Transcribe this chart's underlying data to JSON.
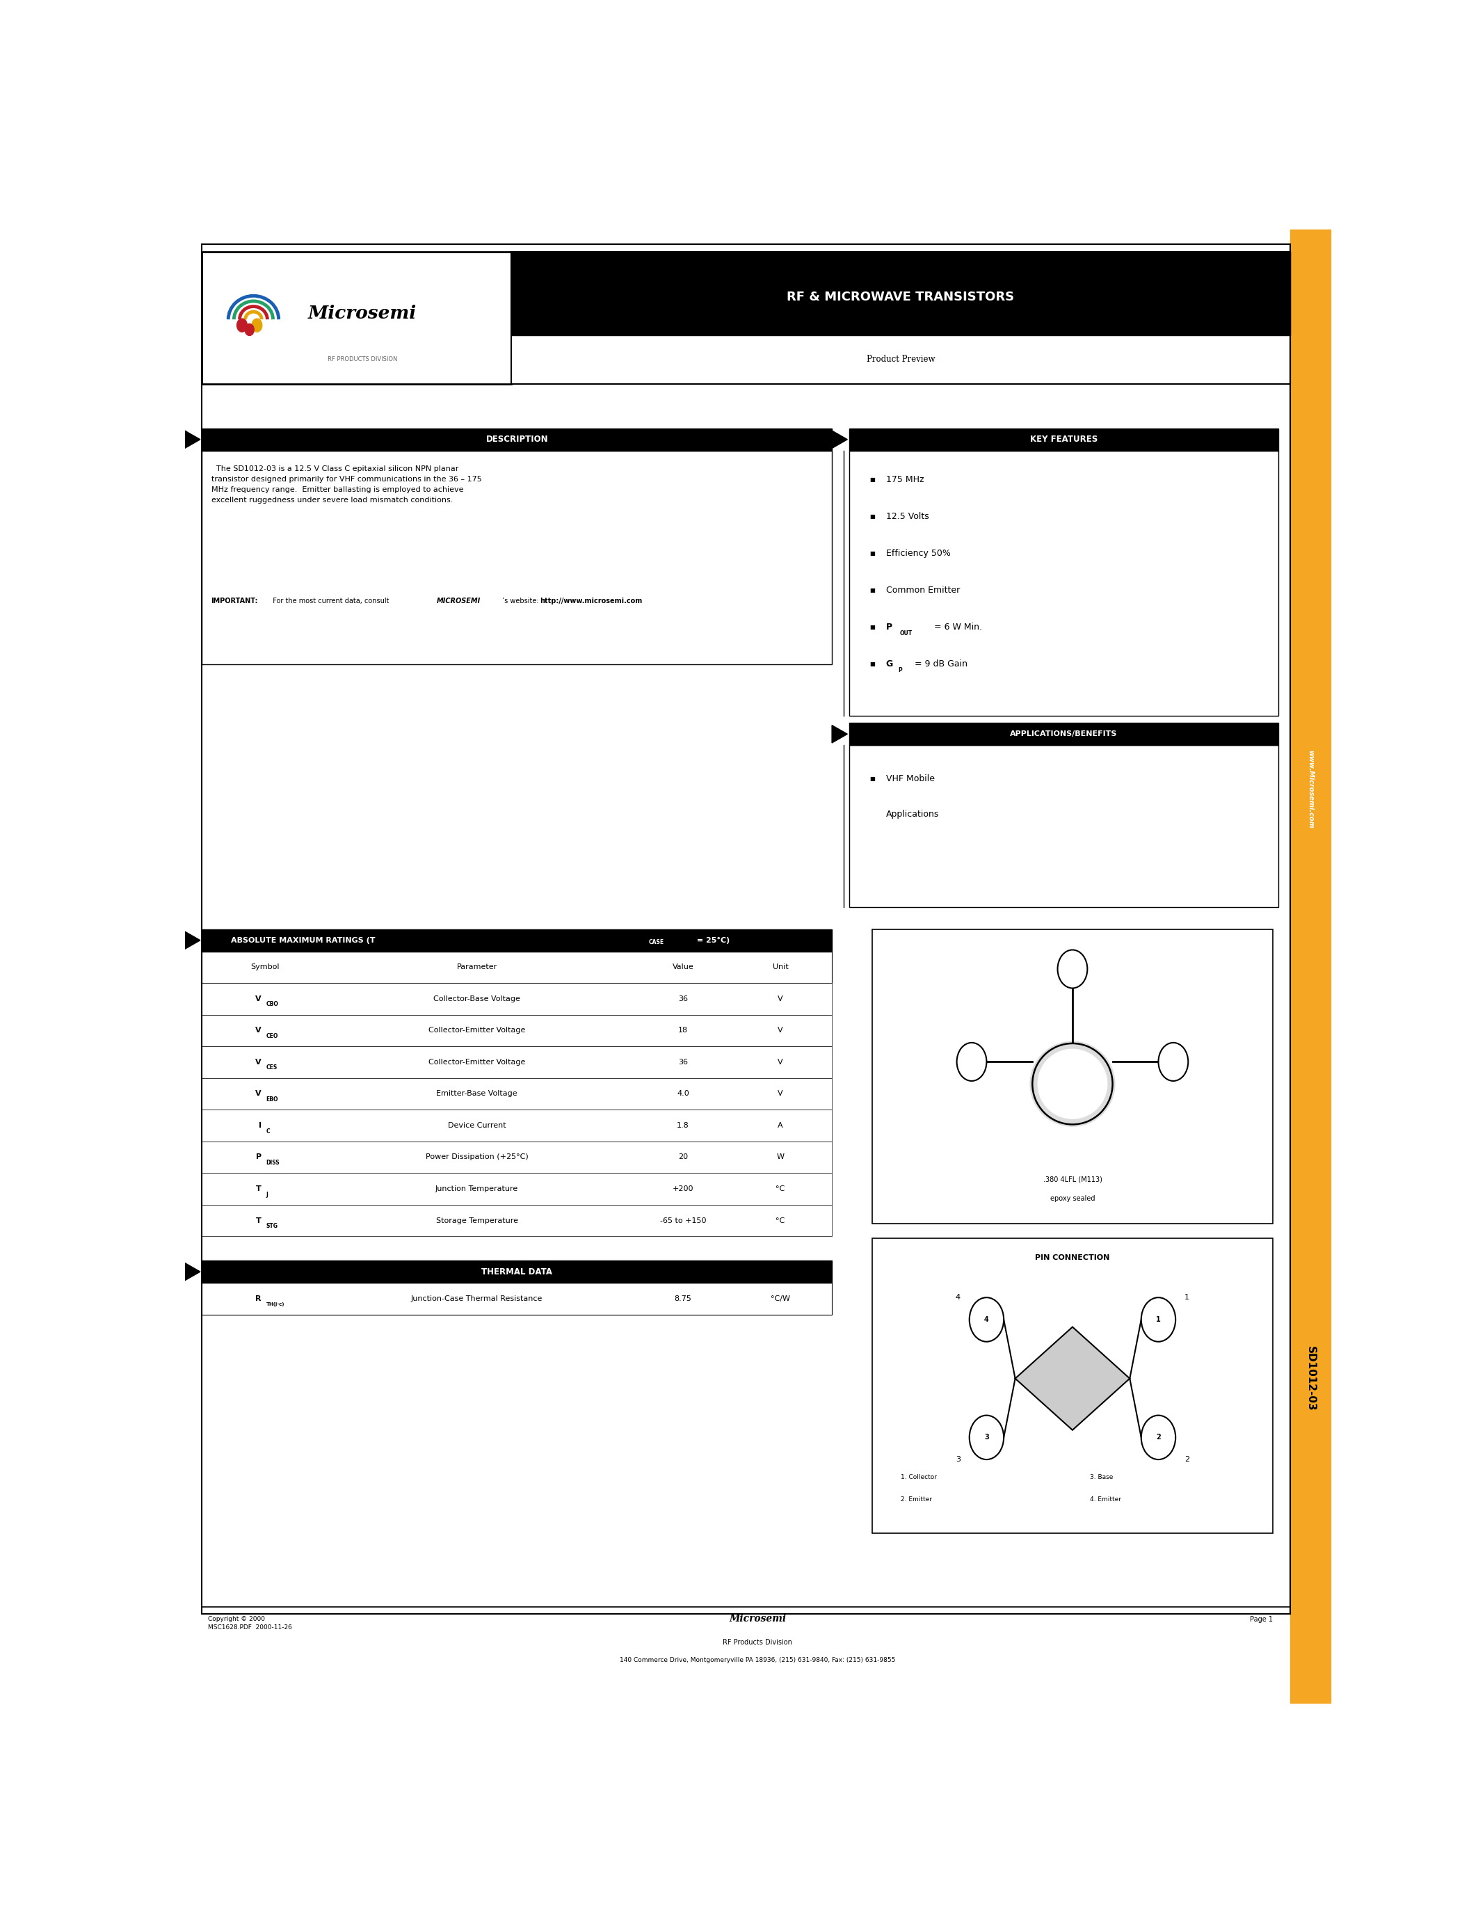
{
  "page_width": 21.25,
  "page_height": 27.5,
  "bg_color": "#ffffff",
  "orange_color": "#F5A623",
  "black_color": "#000000",
  "part_number": "SD1012-03",
  "product_line": "RF & MICROWAVE TRANSISTORS",
  "product_preview": "Product Preview",
  "company_sub": "RF PRODUCTS DIVISION",
  "description_title": "DESCRIPTION",
  "description_text": "  The SD1012-03 is a 12.5 V Class C epitaxial silicon NPN planar\ntransistor designed primarily for VHF communications in the 36 – 175\nMHz frequency range.  Emitter ballasting is employed to achieve\nexcellent ruggedness under severe load mismatch conditions.",
  "key_features_title": "KEY FEATURES",
  "applications_title": "APPLICATIONS/BENEFITS",
  "abs_max_headers": [
    "Symbol",
    "Parameter",
    "Value",
    "Unit"
  ],
  "thermal_title": "THERMAL DATA",
  "package_text1": ".380 4LFL (M113)",
  "package_text2": "epoxy sealed",
  "pin_conn_title": "PIN CONNECTION",
  "footer_copyright": "Copyright © 2000\nMSC1628.PDF  2000-11-26",
  "footer_company": "Microsemi",
  "footer_division": "RF Products Division",
  "footer_address": "140 Commerce Drive, Montgomeryville PA 18936, (215) 631-9840, Fax: (215) 631-9855",
  "footer_page": "Page 1",
  "sidebar_text": "SD1012-03",
  "sidebar_web": "www.Microsemi.com"
}
